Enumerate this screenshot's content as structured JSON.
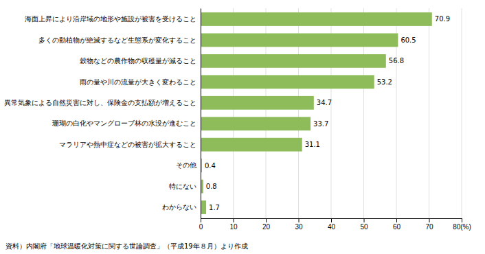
{
  "chart_data": {
    "type": "bar",
    "orientation": "horizontal",
    "categories": [
      "海面上昇により沿岸域の地形や施設が被害を受けること",
      "多くの動植物が絶滅するなど生態系が変化すること",
      "穀物などの農作物の収穫量が減ること",
      "雨の量や川の流量が大きく変わること",
      "異常気象による自然災害に対し、保険金の支払額が増えること",
      "珊瑚の白化やマングローブ林の水没が進むこと",
      "マラリアや熱中症などの被害が拡大すること",
      "その他",
      "特にない",
      "わからない"
    ],
    "values": [
      70.9,
      60.5,
      56.8,
      53.2,
      34.7,
      33.7,
      31.1,
      0.4,
      0.8,
      1.7
    ],
    "color": "#8fbc5a",
    "xlim": [
      0,
      80
    ],
    "xticks": [
      0,
      10,
      20,
      30,
      40,
      50,
      60,
      70,
      {
        "value": 80,
        "label": "80(%)"
      }
    ],
    "grid": true,
    "data_labels": true,
    "annotations": [
      "資料）内閣府「地球温暖化対策に関する世論調査」（平成19年８月）より作成"
    ]
  }
}
